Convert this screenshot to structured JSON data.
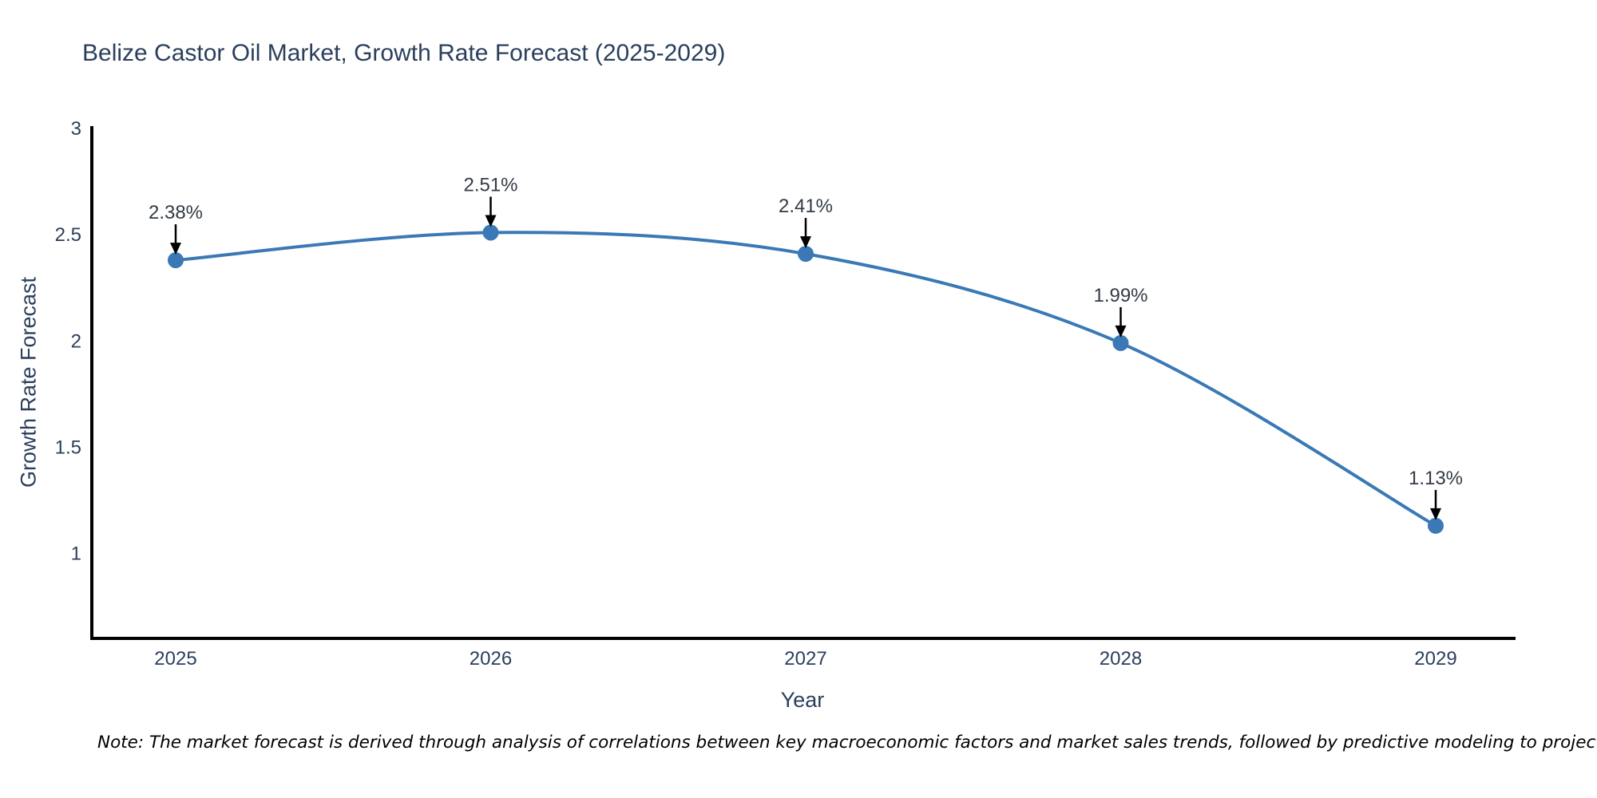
{
  "title": "Belize Castor Oil Market, Growth Rate Forecast (2025-2029)",
  "note": "Note: The market forecast is derived through analysis of correlations between key macroeconomic factors and market sales trends, followed by predictive modeling to project future sales",
  "chart_data": {
    "type": "line",
    "title": "Belize Castor Oil Market, Growth Rate Forecast (2025-2029)",
    "x": [
      "2025",
      "2026",
      "2027",
      "2028",
      "2029"
    ],
    "series": [
      {
        "name": "Growth Rate Forecast",
        "values": [
          2.38,
          2.51,
          2.41,
          1.99,
          1.13
        ]
      }
    ],
    "point_labels": [
      "2.38%",
      "2.51%",
      "2.41%",
      "1.99%",
      "1.13%"
    ],
    "xlabel": "Year",
    "ylabel": "Growth Rate Forecast",
    "yticks": [
      1,
      1.5,
      2,
      2.5,
      3
    ],
    "ylim": [
      0.6,
      3.0
    ],
    "line_shape": "spline",
    "markers": true,
    "grid": false,
    "legend": "none",
    "colors": {
      "line": "#3a79b5",
      "marker": "#3a79b5",
      "axis": "#000000",
      "text": "#2b3f5c",
      "annotation": "#333b46",
      "arrow": "#000000",
      "background": "#ffffff"
    }
  }
}
